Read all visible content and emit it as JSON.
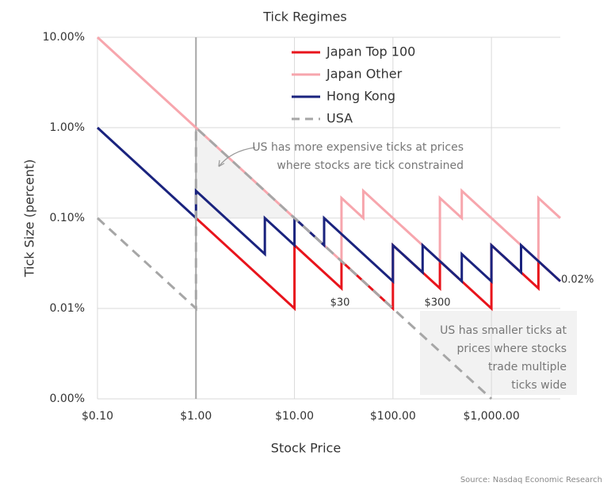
{
  "chart_data": {
    "type": "line",
    "title": "Tick Regimes",
    "x_label": "Stock Price",
    "y_label": "Tick Size (percent)",
    "x_log": true,
    "y_log": true,
    "grid": true,
    "legend": "top",
    "xlim": [
      0.1,
      5000
    ],
    "ylim": [
      0.001,
      10
    ],
    "xticks": [
      {
        "value": 0.1,
        "label": "$0.10"
      },
      {
        "value": 1,
        "label": "$1.00"
      },
      {
        "value": 10,
        "label": "$10.00"
      },
      {
        "value": 100,
        "label": "$100.00"
      },
      {
        "value": 1000,
        "label": "$1,000.00"
      }
    ],
    "yticks": [
      {
        "value": 0.001,
        "label": "0.00%"
      },
      {
        "value": 0.01,
        "label": "0.01%"
      },
      {
        "value": 0.1,
        "label": "0.10%"
      },
      {
        "value": 1,
        "label": "1.00%"
      },
      {
        "value": 10,
        "label": "10.00%"
      }
    ],
    "series": [
      {
        "name": "Japan Top 100",
        "color": "#e8141c",
        "dash": false,
        "x": [
          1,
          10,
          10,
          30,
          30,
          100,
          100,
          300,
          300,
          1000,
          1000,
          3000,
          3000,
          5000
        ],
        "values": [
          0.1,
          0.01,
          0.05,
          0.0167,
          0.0333,
          0.01,
          0.05,
          0.0167,
          0.0333,
          0.01,
          0.05,
          0.0167,
          0.0333,
          0.02
        ]
      },
      {
        "name": "Japan Other",
        "color": "#f7a6ad",
        "dash": false,
        "x": [
          0.1,
          30,
          30,
          50,
          50,
          300,
          300,
          500,
          500,
          3000,
          3000,
          5000
        ],
        "values": [
          10,
          0.0333,
          0.1667,
          0.1,
          0.2,
          0.0333,
          0.1667,
          0.1,
          0.2,
          0.0333,
          0.1667,
          0.1
        ]
      },
      {
        "name": "Hong Kong",
        "color": "#1a237e",
        "dash": false,
        "x": [
          0.1,
          1,
          1,
          5,
          5,
          10,
          10,
          20,
          20,
          100,
          100,
          200,
          200,
          500,
          500,
          1000,
          1000,
          2000,
          2000,
          5000
        ],
        "values": [
          1,
          0.1,
          0.2,
          0.04,
          0.1,
          0.05,
          0.1,
          0.05,
          0.1,
          0.02,
          0.05,
          0.025,
          0.05,
          0.02,
          0.04,
          0.02,
          0.05,
          0.025,
          0.05,
          0.02
        ]
      },
      {
        "name": "USA",
        "color": "#a6a6a6",
        "dash": true,
        "x": [
          0.1,
          1,
          1,
          100,
          1000
        ],
        "values": [
          0.1,
          0.01,
          1,
          0.01,
          0.001
        ]
      }
    ],
    "annotations": [
      {
        "text": "US has more expensive ticks at prices"
      },
      {
        "text": "where stocks are tick constrained"
      },
      {
        "text": "US has smaller ticks at"
      },
      {
        "text": "prices where stocks"
      },
      {
        "text": "trade multiple"
      },
      {
        "text": "ticks wide"
      },
      {
        "text": "$30"
      },
      {
        "text": "$300"
      },
      {
        "text": "0.02%"
      }
    ],
    "source": "Source: Nasdaq Economic Research"
  }
}
